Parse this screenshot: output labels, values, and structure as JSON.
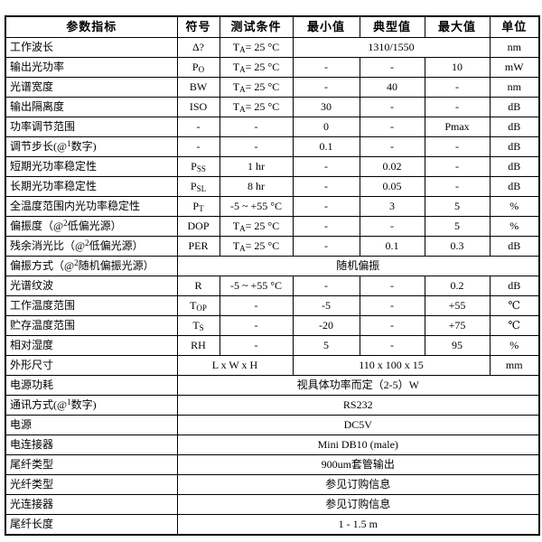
{
  "table": {
    "header": [
      "参数指标",
      "符号",
      "测试条件",
      "最小值",
      "典型值",
      "最大值",
      "单位"
    ],
    "rows": [
      [
        "工作波长",
        "Δ?",
        "T_(A)= 25 °C",
        {
          "t": "1310/1550",
          "span": 3
        },
        "nm"
      ],
      [
        "输出光功率",
        "P_(O)",
        "T_(A)= 25 °C",
        "-",
        "-",
        "10",
        "mW"
      ],
      [
        "光谱宽度",
        "BW",
        "T_(A)= 25 °C",
        "-",
        "40",
        "-",
        "nm"
      ],
      [
        "输出隔离度",
        "ISO",
        "T_(A)= 25 °C",
        "30",
        "-",
        "-",
        "dB"
      ],
      [
        "功率调节范围",
        "-",
        "-",
        "0",
        "-",
        "Pmax",
        "dB"
      ],
      [
        "调节步长(@^(1)数字)",
        "-",
        "-",
        "0.1",
        "-",
        "-",
        "dB"
      ],
      [
        "短期光功率稳定性",
        "P_(SS)",
        "1 hr",
        "-",
        "0.02",
        "-",
        "dB"
      ],
      [
        "长期光功率稳定性",
        "P_(SL)",
        "8 hr",
        "-",
        "0.05",
        "-",
        "dB"
      ],
      [
        "全温度范围内光功率稳定性",
        "P_(T)",
        "-5 ~ +55 °C",
        "-",
        "3",
        "5",
        "%"
      ],
      [
        "偏振度（@^(2)低偏光源）",
        "DOP",
        "T_(A)= 25 °C",
        "-",
        "-",
        "5",
        "%"
      ],
      [
        "残余消光比（@^(2)低偏光源）",
        "PER",
        "T_(A)= 25 °C",
        "-",
        "0.1",
        "0.3",
        "dB"
      ],
      [
        "偏振方式（@^(2)随机偏振光源）",
        {
          "t": "随机偏振",
          "span": 6
        }
      ],
      [
        "光谱纹波",
        "R",
        "-5 ~ +55 °C",
        "-",
        "-",
        "0.2",
        "dB"
      ],
      [
        "工作温度范围",
        "T_(OP)",
        "-",
        "-5",
        "-",
        "+55",
        "℃"
      ],
      [
        "贮存温度范围",
        "T_(S)",
        "-",
        "-20",
        "-",
        "+75",
        "℃"
      ],
      [
        "相对湿度",
        "RH",
        "-",
        "5",
        "-",
        "95",
        "%"
      ],
      [
        "外形尺寸",
        {
          "t": "L x W x H",
          "span": 2
        },
        {
          "t": "110 x 100 x 15",
          "span": 3
        },
        "mm"
      ],
      [
        "电源功耗",
        {
          "t": "视具体功率而定（2-5）W",
          "span": 6
        }
      ],
      [
        "通讯方式(@^(1)数字)",
        {
          "t": "RS232",
          "span": 6
        }
      ],
      [
        "电源",
        {
          "t": "DC5V",
          "span": 6
        }
      ],
      [
        "电连接器",
        {
          "t": "Mini DB10 (male)",
          "span": 6
        }
      ],
      [
        "尾纤类型",
        {
          "t": "900um套管输出",
          "span": 6
        }
      ],
      [
        "光纤类型",
        {
          "t": "参见订购信息",
          "span": 6
        }
      ],
      [
        "光连接器",
        {
          "t": "参见订购信息",
          "span": 6
        }
      ],
      [
        "尾纤长度",
        {
          "t": "1 - 1.5 m",
          "span": 6
        }
      ]
    ],
    "colors": {
      "border": "#000000",
      "text": "#000000",
      "background": "#ffffff"
    }
  }
}
